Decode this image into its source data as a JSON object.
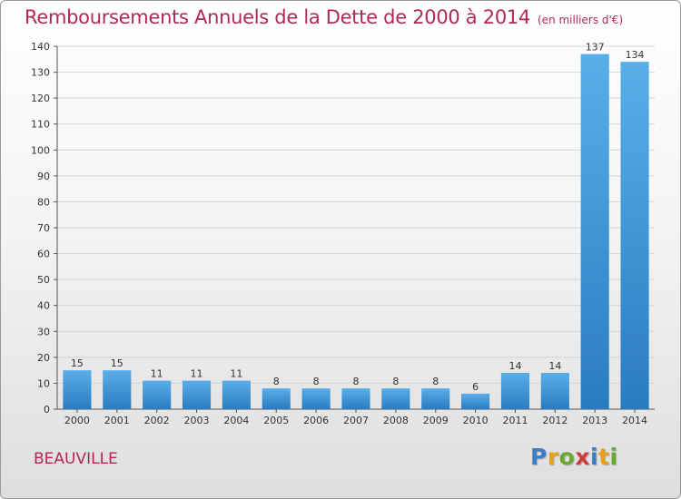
{
  "header": {
    "title": "Remboursements Annuels de la Dette de 2000 à 2014",
    "subtitle": "(en milliers d'€)"
  },
  "commune": "BEAUVILLE",
  "logo": {
    "letters": [
      "P",
      "r",
      "o",
      "x",
      "i",
      "t",
      "i"
    ],
    "colors": [
      "#3a7fc8",
      "#e8a020",
      "#6aa832",
      "#d03a3a",
      "#3a7fc8",
      "#e8a020",
      "#6aa832"
    ]
  },
  "colors": {
    "title": "#b0285a",
    "bar_top": "#5aaee8",
    "bar_bottom": "#2a7cc0"
  },
  "chart_data": {
    "type": "bar",
    "categories": [
      "2000",
      "2001",
      "2002",
      "2003",
      "2004",
      "2005",
      "2006",
      "2007",
      "2008",
      "2009",
      "2010",
      "2011",
      "2012",
      "2013",
      "2014"
    ],
    "values": [
      15,
      15,
      11,
      11,
      11,
      8,
      8,
      8,
      8,
      8,
      6,
      14,
      14,
      137,
      134
    ],
    "title": "Remboursements Annuels de la Dette de 2000 à 2014",
    "xlabel": "",
    "ylabel": "",
    "ylim": [
      0,
      140
    ],
    "yticks": [
      0,
      10,
      20,
      30,
      40,
      50,
      60,
      70,
      80,
      90,
      100,
      110,
      120,
      130,
      140
    ],
    "grid": true
  }
}
